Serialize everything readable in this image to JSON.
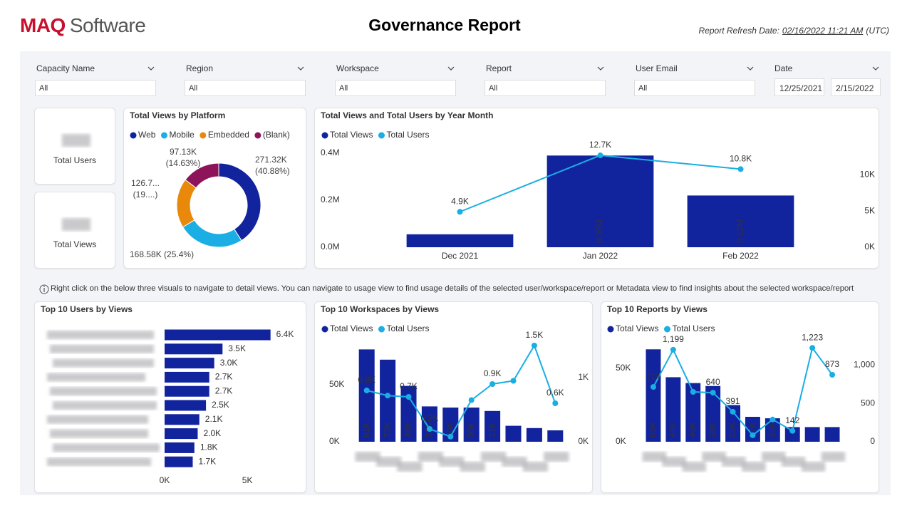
{
  "header": {
    "logo_brand": "MAQ",
    "logo_name": "Software",
    "title": "Governance Report",
    "refresh_label": "Report Refresh Date:",
    "refresh_date": "02/16/2022 11:21 AM",
    "refresh_zone": "(UTC)"
  },
  "filters": [
    {
      "label": "Capacity Name",
      "value": "All"
    },
    {
      "label": "Region",
      "value": "All"
    },
    {
      "label": "Workspace",
      "value": "All"
    },
    {
      "label": "Report",
      "value": "All"
    },
    {
      "label": "User Email",
      "value": "All"
    },
    {
      "label": "Date",
      "start": "12/25/2021",
      "end": "2/15/2022"
    }
  ],
  "cards": [
    {
      "label": "Total Users"
    },
    {
      "label": "Total Views"
    }
  ],
  "note": "Right click on the below three visuals to navigate to detail views. You can navigate to usage view to find usage details of the selected user/workspace/report or Metadata view to find insights about the selected workspace/report",
  "chart_data": [
    {
      "type": "donut",
      "title": "Total Views by Platform",
      "categories": [
        "Web",
        "Mobile",
        "Embedded",
        "(Blank)"
      ],
      "colors": [
        "#12239e",
        "#1aaee4",
        "#e8890c",
        "#8d1459"
      ],
      "values": [
        271320,
        168580,
        126700,
        97130
      ],
      "value_labels": [
        "271.32K (40.88%)",
        "168.58K (25.4%)",
        "126.7... (19....)",
        "97.13K (14.63%)"
      ]
    },
    {
      "type": "combo",
      "title": "Total Views and Total Users by Year Month",
      "categories": [
        "Dec 2021",
        "Jan 2022",
        "Feb 2022"
      ],
      "series": [
        {
          "name": "Total Views",
          "type": "bar",
          "color": "#12239e",
          "values": [
            55000,
            390000,
            220000
          ],
          "value_labels": [
            null,
            "0.39M",
            "0.22M"
          ]
        },
        {
          "name": "Total Users",
          "type": "line",
          "axis": "y2",
          "color": "#1aaee4",
          "values": [
            4900,
            12700,
            10800
          ],
          "value_labels": [
            "4.9K",
            "12.7K",
            "10.8K"
          ]
        }
      ],
      "ylim": [
        0,
        400000
      ],
      "yticks": [
        {
          "value": 0,
          "label": "0.0M"
        },
        {
          "value": 200000,
          "label": "0.2M"
        },
        {
          "value": 400000,
          "label": "0.4M"
        }
      ],
      "y2lim": [
        0,
        13000
      ],
      "y2ticks": [
        {
          "value": 0,
          "label": "0K"
        },
        {
          "value": 5000,
          "label": "5K"
        },
        {
          "value": 10000,
          "label": "10K"
        }
      ]
    },
    {
      "type": "hbar",
      "title": "Top 10 Users by Views",
      "categories": [
        null,
        null,
        null,
        null,
        null,
        null,
        null,
        null,
        null,
        null
      ],
      "color": "#12239e",
      "values": [
        6400,
        3500,
        3000,
        2700,
        2700,
        2500,
        2100,
        2000,
        1800,
        1700
      ],
      "value_labels": [
        "6.4K",
        "3.5K",
        "3.0K",
        "2.7K",
        "2.7K",
        "2.5K",
        "2.1K",
        "2.0K",
        "1.8K",
        "1.7K"
      ],
      "xlim": [
        0,
        6500
      ],
      "xticks": [
        {
          "value": 0,
          "label": "0K"
        },
        {
          "value": 5000,
          "label": "5K"
        }
      ]
    },
    {
      "type": "combo",
      "title": "Top 10 Workspaces by Views",
      "categories": [
        null,
        null,
        null,
        null,
        null,
        null,
        null,
        null,
        null,
        null
      ],
      "series": [
        {
          "name": "Total Views",
          "type": "bar",
          "color": "#12239e",
          "values": [
            81000,
            72000,
            49000,
            31000,
            30000,
            30000,
            27000,
            14000,
            12000,
            10000
          ],
          "value_labels": [
            "81K",
            "72K",
            "49K",
            "31K",
            "30K",
            "30K",
            "27K",
            null,
            null,
            null
          ]
        },
        {
          "name": "Total Users",
          "type": "line",
          "axis": "y2",
          "color": "#1aaee4",
          "values": [
            800,
            720,
            700,
            200,
            80,
            650,
            900,
            950,
            1500,
            600
          ],
          "value_labels": [
            "0.8K",
            null,
            "0.7K",
            "0.2K",
            null,
            null,
            "0.9K",
            null,
            "1.5K",
            "0.6K"
          ]
        }
      ],
      "ylim": [
        0,
        90000
      ],
      "yticks": [
        {
          "value": 0,
          "label": "0K"
        },
        {
          "value": 50000,
          "label": "50K"
        }
      ],
      "y2lim": [
        0,
        1600
      ],
      "y2ticks": [
        {
          "value": 0,
          "label": "0K"
        },
        {
          "value": 1000,
          "label": "1K"
        }
      ]
    },
    {
      "type": "combo",
      "title": "Top 10 Reports by Views",
      "categories": [
        null,
        null,
        null,
        null,
        null,
        null,
        null,
        null,
        null,
        null
      ],
      "series": [
        {
          "name": "Total Views",
          "type": "bar",
          "color": "#12239e",
          "values": [
            63000,
            44000,
            40000,
            38000,
            25000,
            17000,
            16000,
            10000,
            10000,
            10000
          ],
          "value_labels": [
            "63K",
            "44K",
            "40K",
            "38K",
            "25K",
            "17K",
            "16K",
            null,
            null,
            null
          ]
        },
        {
          "name": "Total Users",
          "type": "line",
          "axis": "y2",
          "color": "#1aaee4",
          "values": [
            714,
            1199,
            650,
            640,
            391,
            85,
            290,
            142,
            1223,
            873
          ],
          "value_labels": [
            "714",
            "1,199",
            null,
            "640",
            "391",
            null,
            null,
            "142",
            "1,223",
            "873"
          ]
        }
      ],
      "ylim": [
        0,
        68000
      ],
      "yticks": [
        {
          "value": 0,
          "label": "0K"
        },
        {
          "value": 50000,
          "label": "50K"
        }
      ],
      "y2lim": [
        0,
        1300
      ],
      "y2ticks": [
        0,
        500,
        {
          "value": 1000,
          "label": "1,000"
        }
      ]
    }
  ]
}
